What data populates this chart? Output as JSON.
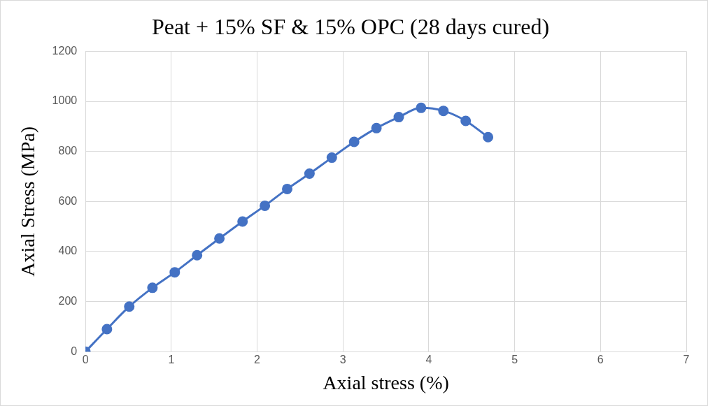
{
  "chart_data": {
    "type": "line",
    "title": "Peat + 15% SF & 15% OPC (28 days cured)",
    "xlabel": "Axial stress (%)",
    "ylabel": "Axial Stress (MPa)",
    "x": [
      0,
      0.25,
      0.51,
      0.78,
      1.04,
      1.3,
      1.56,
      1.83,
      2.09,
      2.35,
      2.61,
      2.87,
      3.13,
      3.39,
      3.65,
      3.91,
      4.17,
      4.43,
      4.69
    ],
    "series": [
      {
        "color": "#4472c4",
        "values": [
          0,
          90,
          180,
          255,
          317,
          385,
          452,
          520,
          583,
          650,
          711,
          775,
          838,
          893,
          937,
          974,
          962,
          922,
          857
        ]
      }
    ],
    "xlim": [
      0,
      7
    ],
    "xticks": [
      0,
      1,
      2,
      3,
      4,
      5,
      6,
      7
    ],
    "ylim": [
      0,
      1200
    ],
    "yticks": [
      0,
      200,
      400,
      600,
      800,
      1000,
      1200
    ],
    "grid": true,
    "legend": false,
    "marker": "circle",
    "line_style": "solid"
  }
}
